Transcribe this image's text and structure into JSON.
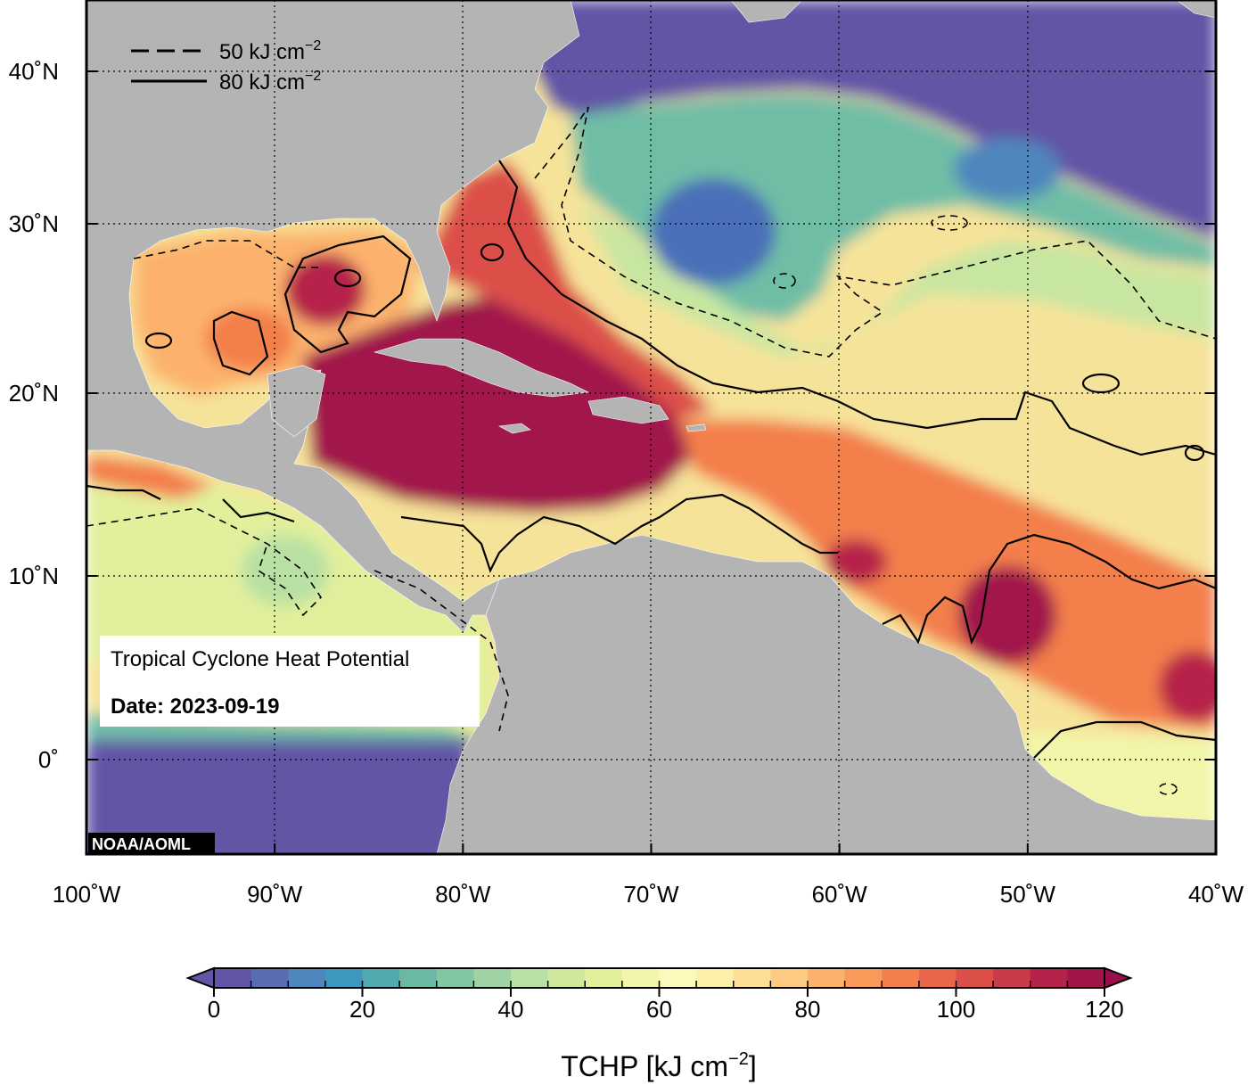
{
  "map": {
    "credit": "NOAA/AOML",
    "lon_ticks": [
      {
        "value": -100,
        "label": "100˚W"
      },
      {
        "value": -90,
        "label": "90˚W"
      },
      {
        "value": -80,
        "label": "80˚W"
      },
      {
        "value": -70,
        "label": "70˚W"
      },
      {
        "value": -60,
        "label": "60˚W"
      },
      {
        "value": -50,
        "label": "50˚W"
      },
      {
        "value": -40,
        "label": "40˚W"
      }
    ],
    "lat_ticks": [
      {
        "value": 40,
        "label": "40˚N"
      },
      {
        "value": 30,
        "label": "30˚N"
      },
      {
        "value": 20,
        "label": "20˚N"
      },
      {
        "value": 10,
        "label": "10˚N"
      },
      {
        "value": 0,
        "label": "0˚"
      }
    ],
    "extent": {
      "lon_min": -100,
      "lon_max": -40,
      "lat_min": -5,
      "lat_max": 44
    },
    "grid": "dotted"
  },
  "legend": {
    "dashed_value": "50 kJ cm",
    "solid_value": "80 kJ cm",
    "exponent": "−2",
    "placement": "top-left"
  },
  "info_box": {
    "title": "Tropical Cyclone Heat Potential",
    "date_label": "Date: 2023-09-19"
  },
  "colorbar": {
    "title_base": "TCHP [kJ cm",
    "title_exp": "−2",
    "title_end": "]",
    "min": 0,
    "max": 120,
    "step": 5,
    "ticks": [
      {
        "value": 0,
        "label": "0"
      },
      {
        "value": 20,
        "label": "20"
      },
      {
        "value": 40,
        "label": "40"
      },
      {
        "value": 60,
        "label": "60"
      },
      {
        "value": 80,
        "label": "80"
      },
      {
        "value": 100,
        "label": "100"
      },
      {
        "value": 120,
        "label": "120"
      }
    ],
    "colors": [
      "#6255a6",
      "#5a6cb2",
      "#4f86bd",
      "#3e97be",
      "#50aab0",
      "#6ab9a4",
      "#83c6a3",
      "#9fd3a4",
      "#b9e0a3",
      "#cfe89e",
      "#e2f09c",
      "#f1f6aa",
      "#fbf9bc",
      "#fcefa7",
      "#fde096",
      "#fdcb82",
      "#fcb26d",
      "#f99a5b",
      "#f37f4c",
      "#e8674a",
      "#dc4f49",
      "#cb3a4a",
      "#b6234a",
      "#a1154b"
    ],
    "under_color": "#6255a6",
    "over_color": "#9a0f49"
  },
  "colors": {
    "land": "#b4b4b4",
    "cold_ocean": "#6255a6",
    "hot_ocean": "#a1154b"
  }
}
